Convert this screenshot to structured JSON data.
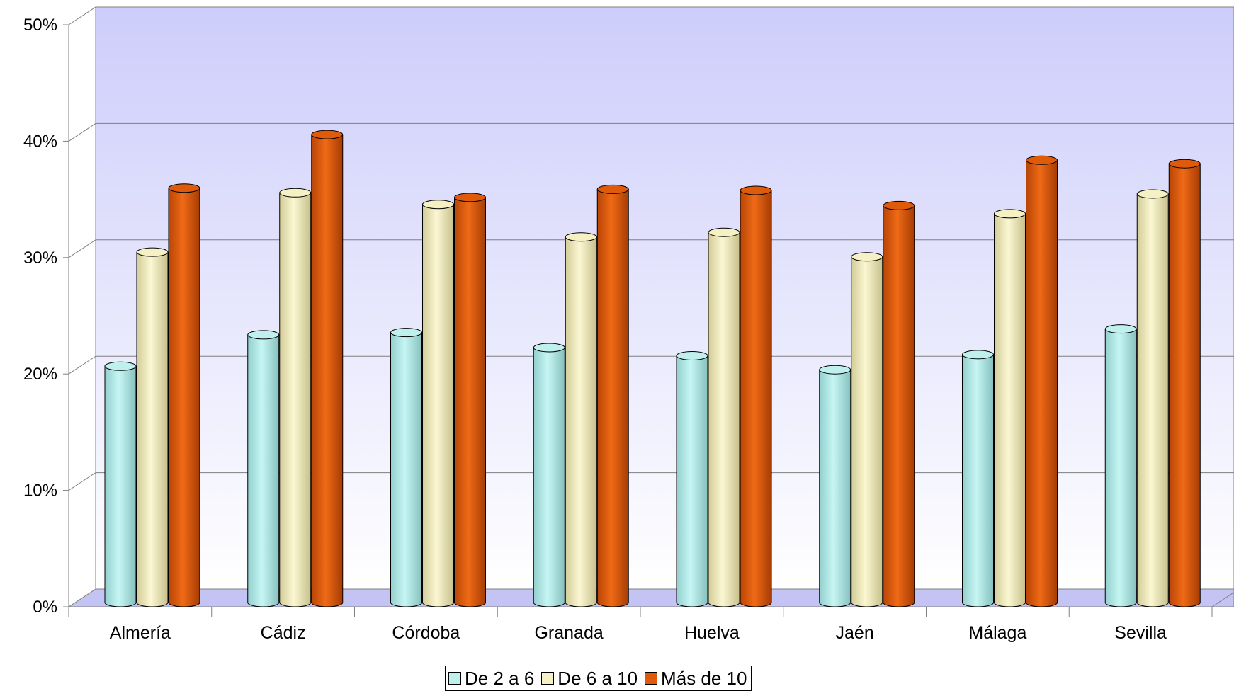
{
  "chart_data": {
    "type": "bar",
    "style": "3d-cylinder",
    "categories": [
      "Almería",
      "Cádiz",
      "Córdoba",
      "Granada",
      "Huelva",
      "Jaén",
      "Málaga",
      "Sevilla"
    ],
    "series": [
      {
        "name": "De 2 a 6",
        "color": "#bff0ee",
        "values": [
          20.3,
          23.0,
          23.2,
          21.9,
          21.2,
          20.0,
          21.3,
          23.5
        ]
      },
      {
        "name": "De 6 a 10",
        "color": "#f6f1c4",
        "values": [
          30.1,
          35.2,
          34.2,
          31.4,
          31.8,
          29.7,
          33.4,
          35.1
        ]
      },
      {
        "name": "Más de 10",
        "color": "#e05a0c",
        "values": [
          35.6,
          40.2,
          34.8,
          35.5,
          35.4,
          34.1,
          38.0,
          37.7
        ]
      }
    ],
    "yticks": [
      "0%",
      "10%",
      "20%",
      "30%",
      "40%",
      "50%"
    ],
    "ylim": [
      0,
      50
    ],
    "grid": true,
    "legend_position": "bottom"
  }
}
